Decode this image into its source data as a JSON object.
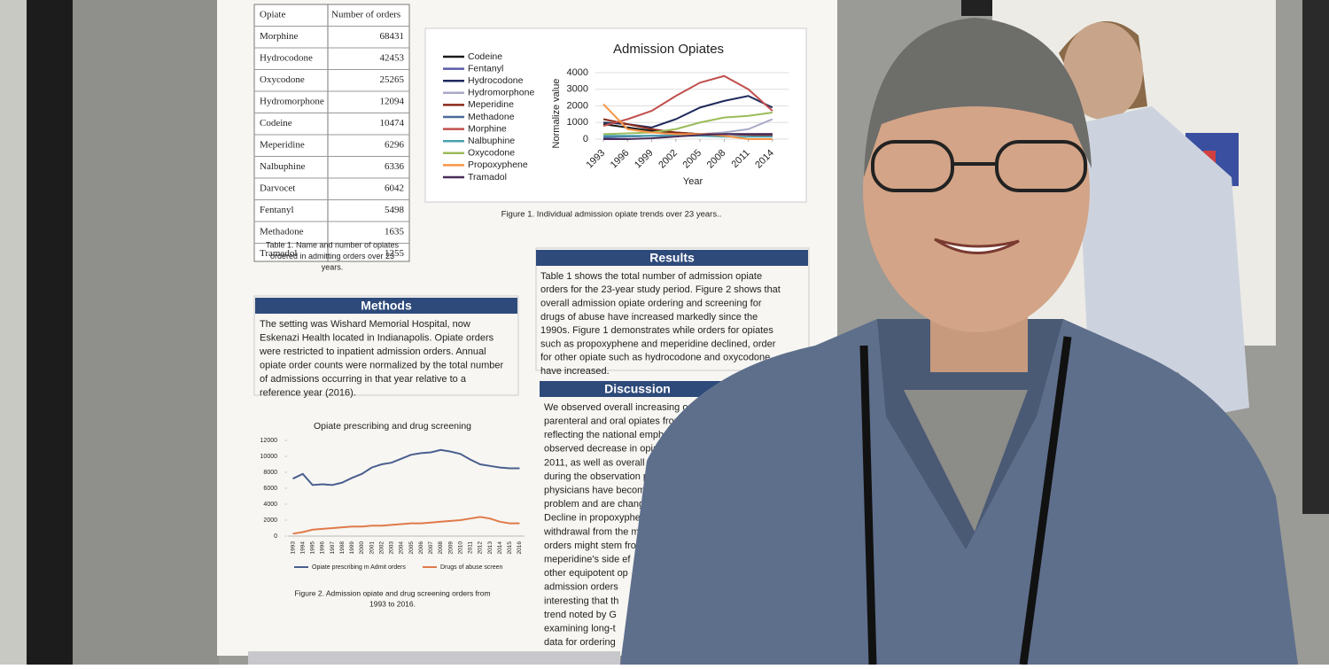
{
  "table": {
    "header": [
      "Opiate",
      "Number of orders"
    ],
    "rows": [
      [
        "Morphine",
        68431
      ],
      [
        "Hydrocodone",
        42453
      ],
      [
        "Oxycodone",
        25265
      ],
      [
        "Hydromorphone",
        12094
      ],
      [
        "Codeine",
        10474
      ],
      [
        "Meperidine",
        6296
      ],
      [
        "Nalbuphine",
        6336
      ],
      [
        "Darvocet",
        6042
      ],
      [
        "Fentanyl",
        5498
      ],
      [
        "Methadone",
        1635
      ],
      [
        "Tramadol",
        1255
      ]
    ],
    "caption": [
      "Table 1. Name and number of opiates",
      "ordered in admitting orders over 23",
      "years."
    ]
  },
  "chart_data": [
    {
      "type": "line",
      "title": "Admission Opiates",
      "x_label": "Year",
      "y_label": "Normalize value",
      "x": [
        1993,
        1996,
        1999,
        2002,
        2005,
        2008,
        2011,
        2014
      ],
      "xlim": [
        1992,
        2016
      ],
      "xticks": [
        1993,
        1996,
        1999,
        2002,
        2005,
        2008,
        2011,
        2014
      ],
      "ylim": [
        0,
        4000
      ],
      "yticks": [
        0,
        1000,
        2000,
        3000,
        4000
      ],
      "grid": true,
      "series": [
        {
          "name": "Codeine",
          "color": "#1a1a1a",
          "values": [
            900,
            700,
            500,
            400,
            300,
            300,
            300,
            300
          ]
        },
        {
          "name": "Fentanyl",
          "color": "#5a5aa8",
          "values": [
            100,
            150,
            200,
            250,
            300,
            300,
            300,
            300
          ]
        },
        {
          "name": "Hydrocodone",
          "color": "#1f2a5c",
          "values": [
            1000,
            900,
            700,
            1200,
            1900,
            2300,
            2600,
            1900
          ]
        },
        {
          "name": "Hydromorphone",
          "color": "#a9a9c8",
          "values": [
            200,
            200,
            200,
            250,
            300,
            400,
            600,
            1200
          ]
        },
        {
          "name": "Meperidine",
          "color": "#8a2a1a",
          "values": [
            1200,
            900,
            600,
            400,
            300,
            300,
            250,
            200
          ]
        },
        {
          "name": "Methadone",
          "color": "#4a6a9a",
          "values": [
            100,
            150,
            200,
            200,
            250,
            300,
            300,
            300
          ]
        },
        {
          "name": "Morphine",
          "color": "#c0504d",
          "values": [
            800,
            1200,
            1700,
            2600,
            3400,
            3800,
            3000,
            1700
          ]
        },
        {
          "name": "Nalbuphine",
          "color": "#4aa0b0",
          "values": [
            200,
            200,
            200,
            200,
            200,
            150,
            150,
            150
          ]
        },
        {
          "name": "Oxycodone",
          "color": "#9bbb59",
          "values": [
            300,
            350,
            400,
            600,
            1000,
            1300,
            1400,
            1600
          ]
        },
        {
          "name": "Propoxyphene",
          "color": "#f79646",
          "values": [
            2100,
            600,
            400,
            300,
            300,
            200,
            0,
            0
          ]
        },
        {
          "name": "Tramadol",
          "color": "#4a2a5a",
          "values": [
            0,
            0,
            50,
            150,
            250,
            300,
            300,
            300
          ]
        }
      ]
    },
    {
      "type": "line",
      "title": "Opiate prescribing and drug screening",
      "categories": [
        "1993",
        "1994",
        "1995",
        "1996",
        "1997",
        "1998",
        "1999",
        "2000",
        "2001",
        "2002",
        "2003",
        "2004",
        "2005",
        "2006",
        "2007",
        "2008",
        "2009",
        "2010",
        "2011",
        "2012",
        "2013",
        "2014",
        "2015",
        "2016"
      ],
      "ylim": [
        0,
        12000
      ],
      "yticks": [
        0,
        2000,
        4000,
        6000,
        8000,
        10000,
        12000
      ],
      "grid": false,
      "series": [
        {
          "name": "Opiate prescribing m Admit orders",
          "color": "#4a5f8f",
          "values": [
            7200,
            7800,
            6400,
            6500,
            6400,
            6700,
            7300,
            7800,
            8600,
            9000,
            9200,
            9700,
            10200,
            10400,
            10500,
            10800,
            10600,
            10300,
            9600,
            9000,
            8800,
            8600,
            8500,
            8500
          ]
        },
        {
          "name": "Drugs of abuse screen",
          "color": "#e07a4a",
          "values": [
            300,
            500,
            800,
            900,
            1000,
            1100,
            1200,
            1200,
            1300,
            1300,
            1400,
            1500,
            1600,
            1600,
            1700,
            1800,
            1900,
            2000,
            2200,
            2400,
            2200,
            1800,
            1600,
            1600
          ]
        }
      ]
    }
  ],
  "captions": [
    "Figure 1. Individual admission opiate trends over 23 years..",
    [
      "Figure 2. Admission opiate and drug screening orders from",
      "1993 to 2016."
    ]
  ],
  "methods": {
    "heading": "Methods",
    "lines": [
      "The setting was Wishard Memorial Hospital, now",
      "Eskenazi Health located in Indianapolis. Opiate orders",
      "were restricted to inpatient admission orders. Annual",
      "opiate order counts were normalized by the total number",
      "of admissions occurring in that year relative to a",
      "reference year (2016)."
    ]
  },
  "results": {
    "heading": "Results",
    "lines": [
      "Table 1 shows the total number of admission opiate",
      "orders for the 23-year study period.  Figure 2 shows that",
      "overall admission opiate ordering and screening for",
      "drugs of abuse have increased markedly since the",
      "1990s.  Figure 1 demonstrates while orders for opiates",
      "such as propoxyphene and meperidine declined, order",
      "for other opiate such as hydrocodone and oxycodone",
      "have increased."
    ]
  },
  "discussion": {
    "heading": "Discussion",
    "lines": [
      "We observed overall increasing or",
      "parenteral and oral opiates from",
      "reflecting the national emphasis",
      "observed decrease in opiate",
      "2011, as well as overall inc",
      "during the observation per",
      "physicians have become",
      "problem and are changi",
      "Decline in propoxyphe",
      "withdrawal from the m",
      "orders might stem fro",
      "meperidine's side ef",
      "other equipotent op",
      "admission orders",
      "interesting that th",
      "trend noted by G",
      "examining long-t",
      "data for ordering"
    ]
  }
}
